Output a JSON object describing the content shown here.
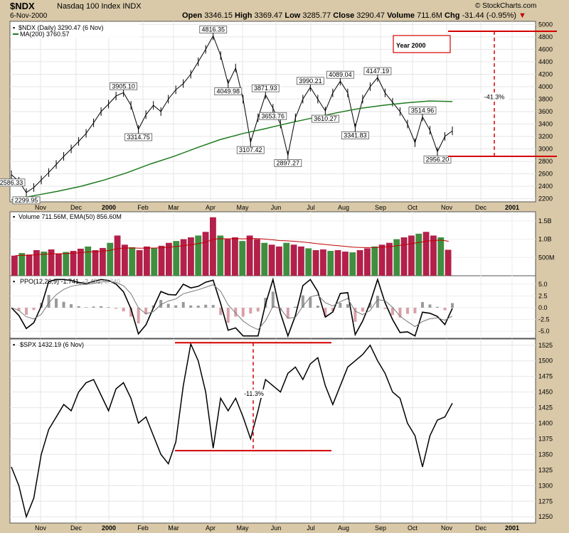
{
  "header": {
    "symbol": "$NDX",
    "name": "Nasdaq 100 Index",
    "exchange": "INDX",
    "date": "6-Nov-2000",
    "open_label": "Open",
    "open": "3346.15",
    "high_label": "High",
    "high": "3369.47",
    "low_label": "Low",
    "low": "3285.77",
    "close_label": "Close",
    "close": "3290.47",
    "volume_label": "Volume",
    "volume": "711.6M",
    "chg_label": "Chg",
    "chg": "-31.44 (-0.95%)",
    "credit": "© StockCharts.com"
  },
  "colors": {
    "background": "#d9c9a8",
    "price": "#000000",
    "ma": "#1e7b1e",
    "annotation": "#d40000",
    "vol_up": "#3f8f3f",
    "vol_down": "#b3204a",
    "ema_line": "#c00000"
  },
  "chart_data": [
    {
      "type": "line",
      "panel": "price",
      "legend": [
        "$NDX (Daily) 3290.47 (6 Nov)",
        "MA(200) 3760.57"
      ],
      "x_labels": [
        "Nov",
        "Dec",
        "2000",
        "Feb",
        "Mar",
        "Apr",
        "May",
        "Jun",
        "Jul",
        "Aug",
        "Sep",
        "Oct",
        "Nov",
        "Dec",
        "2001"
      ],
      "ylim": [
        2150,
        5050
      ],
      "y_ticks": [
        2200,
        2400,
        2600,
        2800,
        3000,
        3200,
        3400,
        3600,
        3800,
        4000,
        4200,
        4400,
        4600,
        4800,
        5000
      ],
      "series": [
        {
          "name": "$NDX",
          "values": [
            2586.33,
            2480,
            2299.95,
            2380,
            2500,
            2620,
            2750,
            2880,
            3000,
            3120,
            3250,
            3420,
            3600,
            3720,
            3850,
            3905.1,
            3700,
            3314.75,
            3550,
            3700,
            3600,
            3800,
            3950,
            4050,
            4200,
            4400,
            4600,
            4816.35,
            4500,
            4049.98,
            4300,
            3800,
            3107.42,
            3500,
            3871.93,
            3653.76,
            3400,
            2897.27,
            3500,
            3800,
            3990.21,
            3800,
            3610.27,
            3900,
            4089.04,
            3900,
            3341.83,
            3800,
            4000,
            4147.19,
            3900,
            3750,
            3600,
            3400,
            3100,
            3514.96,
            3300,
            2956.2,
            3200,
            3290.47
          ]
        },
        {
          "name": "MA(200)",
          "values": [
            2180,
            2250,
            2320,
            2400,
            2500,
            2620,
            2760,
            2880,
            3020,
            3150,
            3250,
            3330,
            3420,
            3500,
            3580,
            3650,
            3700,
            3740,
            3770,
            3760.57
          ]
        }
      ],
      "value_labels": [
        "2586.33",
        "2299.95",
        "3314.75",
        "3905.10",
        "4049.98",
        "4816.35",
        "3107.42",
        "3871.93",
        "3653.76",
        "2897.27",
        "3990.21",
        "3610.27",
        "4089.04",
        "3341.83",
        "4147.19",
        "3514.96",
        "2956.20"
      ],
      "annotations": [
        "Year 2000",
        "-41.3%"
      ]
    },
    {
      "type": "bar",
      "panel": "volume",
      "legend": [
        "Volume 711.56M, EMA(50) 856.60M"
      ],
      "y_ticks": [
        "500M",
        "1.0B",
        "1.5B"
      ],
      "ylim": [
        0,
        1.75
      ],
      "values_billions": [
        0.55,
        0.62,
        0.58,
        0.7,
        0.66,
        0.72,
        0.6,
        0.65,
        0.68,
        0.74,
        0.8,
        0.7,
        0.76,
        0.9,
        1.1,
        0.85,
        0.78,
        0.7,
        0.8,
        0.75,
        0.82,
        0.9,
        0.95,
        1.0,
        1.05,
        1.1,
        1.2,
        1.6,
        1.1,
        1.0,
        1.05,
        0.95,
        1.1,
        1.0,
        0.9,
        0.85,
        0.8,
        0.9,
        0.85,
        0.8,
        0.75,
        0.7,
        0.72,
        0.68,
        0.7,
        0.66,
        0.64,
        0.7,
        0.75,
        0.8,
        0.85,
        0.9,
        1.0,
        1.05,
        1.1,
        1.15,
        1.2,
        1.1,
        1.05,
        0.71
      ]
    },
    {
      "type": "line",
      "panel": "ppo",
      "legend": [
        "PPO(12,26,9)",
        "-1.741",
        "-2.481",
        "0.740"
      ],
      "y_ticks": [
        5.0,
        2.5,
        0.0,
        -2.5,
        -5.0
      ],
      "ylim": [
        -6.5,
        6.5
      ]
    },
    {
      "type": "line",
      "panel": "spx",
      "legend": [
        "$SPX 1432.19 (6 Nov)"
      ],
      "ylim": [
        1240,
        1535
      ],
      "y_ticks": [
        1250,
        1275,
        1300,
        1325,
        1350,
        1375,
        1400,
        1425,
        1450,
        1475,
        1500,
        1525
      ],
      "x_labels": [
        "Nov",
        "Dec",
        "2000",
        "Feb",
        "Mar",
        "Apr",
        "May",
        "Jun",
        "Jul",
        "Aug",
        "Sep",
        "Oct",
        "Nov",
        "Dec",
        "2001"
      ],
      "series": [
        {
          "name": "$SPX",
          "values": [
            1330,
            1300,
            1250,
            1280,
            1350,
            1390,
            1410,
            1430,
            1420,
            1450,
            1465,
            1470,
            1445,
            1420,
            1455,
            1465,
            1440,
            1400,
            1410,
            1380,
            1350,
            1335,
            1370,
            1460,
            1527,
            1500,
            1450,
            1360,
            1440,
            1420,
            1440,
            1410,
            1375,
            1420,
            1470,
            1460,
            1450,
            1480,
            1490,
            1470,
            1495,
            1505,
            1460,
            1430,
            1460,
            1490,
            1500,
            1510,
            1525,
            1500,
            1480,
            1450,
            1440,
            1400,
            1380,
            1330,
            1380,
            1405,
            1410,
            1432.19
          ]
        }
      ],
      "annotations": [
        "-11.3%"
      ]
    }
  ]
}
